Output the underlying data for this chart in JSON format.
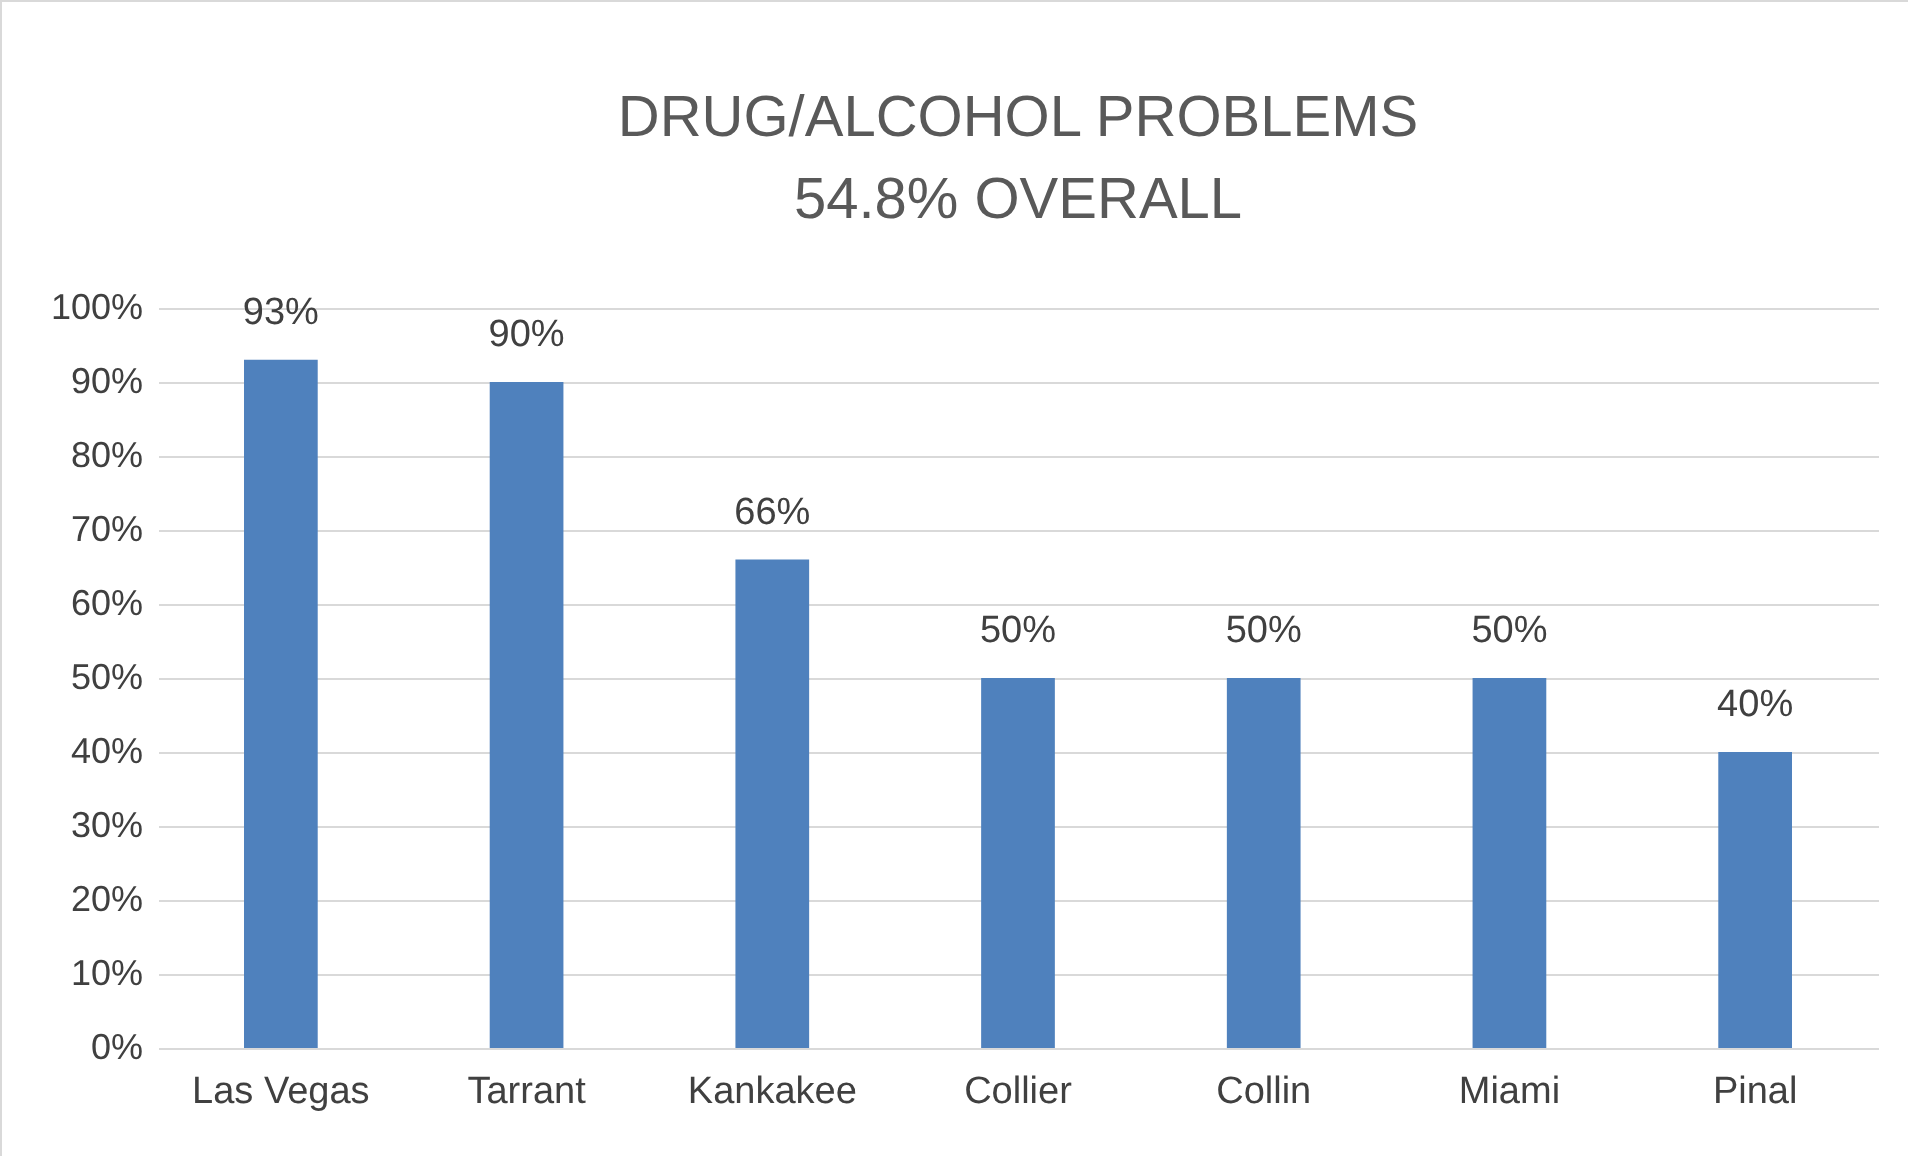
{
  "chart_data": {
    "type": "bar",
    "title": "DRUG/ALCOHOL PROBLEMS",
    "subtitle": "54.8% OVERALL",
    "categories": [
      "Las Vegas",
      "Tarrant",
      "Kankakee",
      "Collier",
      "Collin",
      "Miami",
      "Pinal"
    ],
    "values": [
      93,
      90,
      66,
      50,
      50,
      50,
      40
    ],
    "value_labels": [
      "93%",
      "90%",
      "66%",
      "50%",
      "50%",
      "50%",
      "40%"
    ],
    "color": "#4f81bd",
    "ylim": [
      0,
      100
    ],
    "yticks": [
      {
        "value": 0,
        "label": "0%"
      },
      {
        "value": 10,
        "label": "10%"
      },
      {
        "value": 20,
        "label": "20%"
      },
      {
        "value": 30,
        "label": "30%"
      },
      {
        "value": 40,
        "label": "40%"
      },
      {
        "value": 50,
        "label": "50%"
      },
      {
        "value": 60,
        "label": "60%"
      },
      {
        "value": 70,
        "label": "70%"
      },
      {
        "value": 80,
        "label": "80%"
      },
      {
        "value": 90,
        "label": "90%"
      },
      {
        "value": 100,
        "label": "100%"
      }
    ],
    "grid": "y"
  }
}
